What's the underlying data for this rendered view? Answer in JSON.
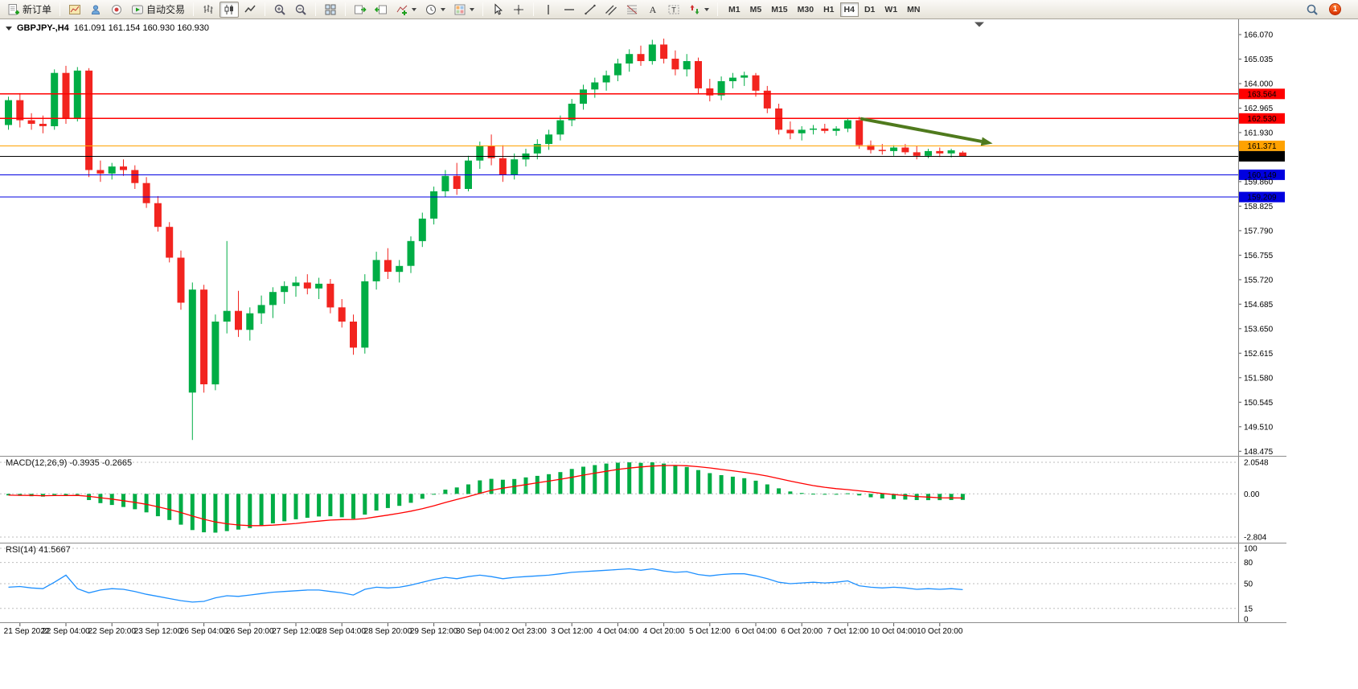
{
  "toolbar": {
    "new_order_label": "新订单",
    "auto_trading_label": "自动交易",
    "timeframes": [
      "M1",
      "M5",
      "M15",
      "M30",
      "H1",
      "H4",
      "D1",
      "W1",
      "MN"
    ],
    "active_timeframe": "H4",
    "notification_badge": "1",
    "icons": [
      "new-order-icon",
      "new-chart-icon",
      "profiles-icon",
      "market-watch-icon",
      "auto-trading-icon",
      "bar-chart-icon",
      "candlestick-chart-icon",
      "line-chart-icon",
      "zoom-in-icon",
      "zoom-out-icon",
      "tile-windows-icon",
      "auto-scroll-icon",
      "chart-shift-icon",
      "indicators-icon",
      "periods-icon",
      "templates-icon",
      "cursor-icon",
      "crosshair-icon",
      "vertical-line-icon",
      "horizontal-line-icon",
      "trendline-icon",
      "channel-icon",
      "fibonacci-icon",
      "text-icon",
      "label-icon",
      "arrows-icon",
      "search-icon"
    ]
  },
  "chart_header": {
    "symbol": "GBPJPY-,H4",
    "ohlc": "161.091 161.154 160.930 160.930"
  },
  "indicators": {
    "macd_label": "MACD(12,26,9) -0.3935 -0.2665",
    "rsi_label": "RSI(14) 41.5667"
  },
  "chart_data": {
    "type": "candlestick",
    "symbol": "GBPJPY",
    "timeframe": "H4",
    "colors": {
      "up": "#00ad45",
      "down": "#f2241f",
      "macd_hist": "#00ad45",
      "macd_signal": "#ff0000",
      "rsi_line": "#1e90ff",
      "arrow": "#4f7a1d",
      "hline_red": "#ff0000",
      "hline_orange": "#ffa200",
      "hline_blue": "#0000e0",
      "current_price": "#000000"
    },
    "price_range": [
      148.28,
      166.715
    ],
    "y_axis_ticks": [
      "166.070",
      "165.035",
      "164.000",
      "162.965",
      "161.930",
      "159.860",
      "158.825",
      "157.790",
      "156.755",
      "155.720",
      "154.685",
      "153.650",
      "152.615",
      "151.580",
      "150.545",
      "149.510",
      "148.475"
    ],
    "hlines": [
      {
        "price": 163.564,
        "label": "163.564",
        "color": "#ff0000"
      },
      {
        "price": 162.53,
        "label": "162.530",
        "color": "#ff0000"
      },
      {
        "price": 161.371,
        "label": "161.371",
        "color": "#ffa200"
      },
      {
        "price": 160.93,
        "label": "160.930",
        "color": "#000000"
      },
      {
        "price": 160.149,
        "label": "160.149",
        "color": "#0000e0"
      },
      {
        "price": 159.209,
        "label": "159.209",
        "color": "#0000e0"
      }
    ],
    "arrow": {
      "from_index": 74.1,
      "from_price": 162.52,
      "to_index": 85.6,
      "to_price": 161.47
    },
    "time_labels": [
      "21 Sep 2022",
      "22 Sep 04:00",
      "22 Sep 20:00",
      "23 Sep 12:00",
      "26 Sep 04:00",
      "26 Sep 20:00",
      "27 Sep 12:00",
      "28 Sep 04:00",
      "28 Sep 20:00",
      "29 Sep 12:00",
      "30 Sep 04:00",
      "2 Oct 23:00",
      "3 Oct 12:00",
      "4 Oct 04:00",
      "4 Oct 20:00",
      "5 Oct 12:00",
      "6 Oct 04:00",
      "6 Oct 20:00",
      "7 Oct 12:00",
      "10 Oct 04:00",
      "10 Oct 20:00"
    ],
    "time_label_start_index": 1,
    "time_label_step": 4,
    "candles": [
      [
        162.25,
        163.45,
        162.05,
        163.3
      ],
      [
        163.3,
        163.6,
        162.15,
        162.45
      ],
      [
        162.45,
        162.75,
        162.05,
        162.3
      ],
      [
        162.3,
        162.65,
        161.9,
        162.2
      ],
      [
        162.2,
        164.6,
        162.05,
        164.45
      ],
      [
        164.45,
        164.75,
        162.3,
        162.55
      ],
      [
        162.55,
        164.7,
        162.4,
        164.55
      ],
      [
        164.55,
        164.65,
        160.05,
        160.35
      ],
      [
        160.35,
        160.75,
        159.85,
        160.2
      ],
      [
        160.2,
        160.65,
        159.95,
        160.5
      ],
      [
        160.5,
        160.8,
        160.1,
        160.35
      ],
      [
        160.35,
        160.55,
        159.55,
        159.8
      ],
      [
        159.8,
        160.05,
        158.75,
        158.95
      ],
      [
        158.95,
        159.25,
        157.75,
        157.95
      ],
      [
        157.95,
        158.15,
        156.45,
        156.65
      ],
      [
        156.65,
        156.95,
        154.45,
        154.75
      ],
      [
        150.95,
        155.6,
        148.95,
        155.3
      ],
      [
        155.3,
        155.5,
        150.95,
        151.3
      ],
      [
        151.3,
        154.25,
        151.05,
        153.95
      ],
      [
        153.95,
        157.35,
        153.45,
        154.4
      ],
      [
        154.4,
        155.25,
        153.3,
        153.6
      ],
      [
        153.6,
        154.55,
        153.15,
        154.3
      ],
      [
        154.3,
        155.05,
        153.85,
        154.65
      ],
      [
        154.65,
        155.4,
        154.1,
        155.2
      ],
      [
        155.2,
        155.65,
        154.7,
        155.45
      ],
      [
        155.45,
        155.85,
        155.0,
        155.6
      ],
      [
        155.6,
        155.95,
        155.1,
        155.35
      ],
      [
        155.35,
        155.8,
        154.9,
        155.55
      ],
      [
        155.55,
        155.75,
        154.3,
        154.55
      ],
      [
        154.55,
        154.9,
        153.7,
        153.95
      ],
      [
        153.95,
        154.25,
        152.55,
        152.85
      ],
      [
        152.85,
        155.95,
        152.6,
        155.65
      ],
      [
        155.65,
        156.9,
        155.3,
        156.55
      ],
      [
        156.55,
        157.05,
        155.75,
        156.05
      ],
      [
        156.05,
        156.55,
        155.6,
        156.3
      ],
      [
        156.3,
        157.55,
        156.0,
        157.35
      ],
      [
        157.35,
        158.55,
        157.1,
        158.3
      ],
      [
        158.3,
        159.65,
        158.05,
        159.45
      ],
      [
        159.45,
        160.35,
        159.2,
        160.1
      ],
      [
        160.1,
        160.65,
        159.3,
        159.55
      ],
      [
        159.55,
        160.95,
        159.45,
        160.75
      ],
      [
        160.75,
        161.55,
        160.4,
        161.35
      ],
      [
        161.35,
        161.85,
        160.55,
        160.85
      ],
      [
        160.85,
        161.4,
        159.85,
        160.15
      ],
      [
        160.15,
        161.05,
        159.95,
        160.8
      ],
      [
        160.8,
        161.25,
        160.5,
        161.05
      ],
      [
        161.05,
        161.65,
        160.8,
        161.45
      ],
      [
        161.45,
        162.05,
        161.2,
        161.85
      ],
      [
        161.85,
        162.65,
        161.6,
        162.45
      ],
      [
        162.45,
        163.35,
        162.2,
        163.15
      ],
      [
        163.15,
        163.95,
        162.9,
        163.75
      ],
      [
        163.75,
        164.25,
        163.4,
        164.05
      ],
      [
        164.05,
        164.55,
        163.7,
        164.35
      ],
      [
        164.35,
        165.05,
        164.1,
        164.85
      ],
      [
        164.85,
        165.45,
        164.5,
        165.25
      ],
      [
        165.25,
        165.6,
        164.75,
        164.95
      ],
      [
        164.95,
        165.85,
        164.8,
        165.65
      ],
      [
        165.65,
        165.9,
        164.85,
        165.05
      ],
      [
        165.05,
        165.4,
        164.35,
        164.6
      ],
      [
        164.6,
        165.25,
        164.3,
        164.95
      ],
      [
        164.95,
        165.1,
        163.55,
        163.8
      ],
      [
        163.8,
        164.2,
        163.25,
        163.5
      ],
      [
        163.5,
        164.3,
        163.3,
        164.1
      ],
      [
        164.1,
        164.45,
        163.8,
        164.25
      ],
      [
        164.25,
        164.5,
        163.9,
        164.35
      ],
      [
        164.35,
        164.45,
        163.45,
        163.7
      ],
      [
        163.7,
        163.9,
        162.75,
        162.95
      ],
      [
        162.95,
        163.15,
        161.85,
        162.05
      ],
      [
        162.05,
        162.4,
        161.65,
        161.9
      ],
      [
        161.9,
        162.2,
        161.6,
        162.05
      ],
      [
        162.05,
        162.25,
        161.85,
        162.1
      ],
      [
        162.1,
        162.3,
        161.9,
        162.0
      ],
      [
        162.0,
        162.2,
        161.8,
        162.1
      ],
      [
        162.1,
        162.55,
        161.95,
        162.45
      ],
      [
        162.45,
        162.6,
        161.25,
        161.4
      ],
      [
        161.4,
        161.6,
        161.05,
        161.2
      ],
      [
        161.2,
        161.45,
        161.0,
        161.15
      ],
      [
        161.15,
        161.4,
        160.95,
        161.3
      ],
      [
        161.3,
        161.45,
        161.0,
        161.1
      ],
      [
        161.1,
        161.35,
        160.8,
        160.95
      ],
      [
        160.95,
        161.25,
        160.85,
        161.15
      ],
      [
        161.15,
        161.3,
        160.9,
        161.05
      ],
      [
        161.05,
        161.25,
        160.88,
        161.18
      ],
      [
        161.091,
        161.154,
        160.93,
        160.93
      ]
    ],
    "macd": {
      "axis_ticks": [
        {
          "label": "2.0548",
          "value": 2.0548
        },
        {
          "label": "0.00",
          "value": 0
        },
        {
          "label": "-2.804",
          "value": -2.804
        }
      ],
      "hist": [
        -0.1,
        -0.12,
        -0.15,
        -0.18,
        -0.08,
        -0.1,
        -0.06,
        -0.4,
        -0.6,
        -0.72,
        -0.85,
        -1.0,
        -1.2,
        -1.45,
        -1.7,
        -2.0,
        -2.35,
        -2.5,
        -2.52,
        -2.42,
        -2.32,
        -2.22,
        -2.08,
        -1.92,
        -1.78,
        -1.65,
        -1.55,
        -1.47,
        -1.45,
        -1.52,
        -1.62,
        -1.35,
        -1.08,
        -0.92,
        -0.78,
        -0.58,
        -0.32,
        -0.02,
        0.28,
        0.42,
        0.62,
        0.88,
        0.98,
        0.92,
        0.97,
        1.07,
        1.17,
        1.28,
        1.42,
        1.62,
        1.77,
        1.87,
        1.97,
        2.03,
        2.05,
        2.02,
        2.05,
        1.97,
        1.85,
        1.75,
        1.55,
        1.35,
        1.22,
        1.12,
        1.02,
        0.86,
        0.62,
        0.36,
        0.16,
        0.06,
        0.01,
        -0.02,
        -0.03,
        0.04,
        -0.1,
        -0.22,
        -0.3,
        -0.34,
        -0.37,
        -0.4,
        -0.41,
        -0.41,
        -0.4,
        -0.3935
      ],
      "signal": [
        -0.08,
        -0.09,
        -0.1,
        -0.12,
        -0.11,
        -0.11,
        -0.1,
        -0.16,
        -0.25,
        -0.34,
        -0.44,
        -0.55,
        -0.68,
        -0.84,
        -1.01,
        -1.21,
        -1.44,
        -1.65,
        -1.82,
        -1.94,
        -2.02,
        -2.06,
        -2.06,
        -2.03,
        -1.98,
        -1.92,
        -1.84,
        -1.77,
        -1.7,
        -1.67,
        -1.66,
        -1.6,
        -1.49,
        -1.38,
        -1.26,
        -1.12,
        -0.96,
        -0.77,
        -0.56,
        -0.36,
        -0.17,
        0.04,
        0.23,
        0.37,
        0.49,
        0.6,
        0.72,
        0.83,
        0.95,
        1.08,
        1.22,
        1.35,
        1.47,
        1.59,
        1.68,
        1.75,
        1.81,
        1.84,
        1.85,
        1.83,
        1.77,
        1.69,
        1.59,
        1.5,
        1.4,
        1.29,
        1.16,
        1.0,
        0.83,
        0.68,
        0.54,
        0.43,
        0.34,
        0.28,
        0.2,
        0.12,
        0.03,
        -0.04,
        -0.11,
        -0.17,
        -0.21,
        -0.25,
        -0.26,
        -0.2665
      ]
    },
    "rsi": {
      "axis_ticks": [
        {
          "label": "100",
          "value": 100
        },
        {
          "label": "80",
          "value": 80
        },
        {
          "label": "50",
          "value": 50
        },
        {
          "label": "15",
          "value": 15
        },
        {
          "label": "0",
          "value": 0
        }
      ],
      "levels": [
        100,
        80,
        50,
        15
      ],
      "values": [
        45,
        46,
        44,
        43,
        52,
        62,
        43,
        37,
        41,
        43,
        42,
        39,
        35,
        32,
        29,
        26,
        24,
        25,
        30,
        33,
        32,
        34,
        36,
        38,
        39,
        40,
        41,
        41,
        39,
        37,
        34,
        42,
        45,
        44,
        45,
        48,
        52,
        56,
        59,
        57,
        60,
        62,
        60,
        57,
        59,
        60,
        61,
        62,
        64,
        66,
        67,
        68,
        69,
        70,
        71,
        69,
        71,
        68,
        66,
        67,
        63,
        61,
        63,
        64,
        64,
        61,
        57,
        52,
        50,
        51,
        52,
        51,
        52,
        54,
        47,
        45,
        44,
        45,
        44,
        42,
        43,
        42,
        43,
        41.57
      ]
    }
  }
}
